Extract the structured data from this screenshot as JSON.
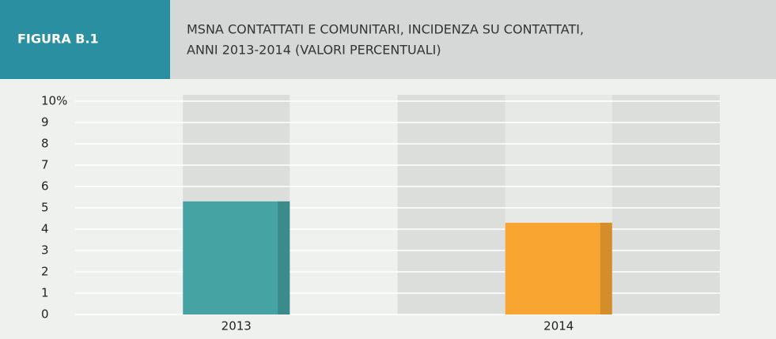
{
  "chart_data": {
    "type": "bar",
    "figure_label": "FIGURA B.1",
    "title": [
      "MSNA CONTATTATI E COMUNITARI, INCIDENZA SU CONTATTATI,",
      "ANNI 2013-2014 (VALORI PERCENTUALI)"
    ],
    "categories": [
      "2013",
      "2014"
    ],
    "values": [
      5.3,
      4.3
    ],
    "colors": [
      "#46a3a4",
      "#f8a631"
    ],
    "ylim": [
      0,
      10
    ],
    "yticks": [
      0,
      1,
      2,
      3,
      4,
      5,
      6,
      7,
      8,
      9,
      {
        "value": 10,
        "label": "10%"
      }
    ],
    "grid": true
  }
}
